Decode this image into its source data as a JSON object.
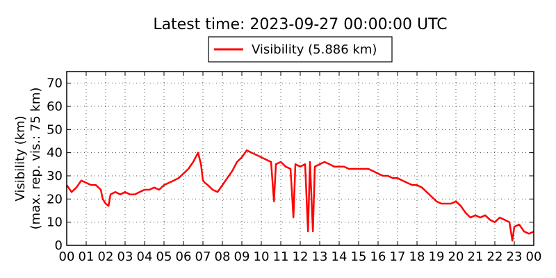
{
  "chart_data": {
    "type": "line",
    "title": "Latest time: 2023-09-27 00:00:00 UTC",
    "xlabel": "",
    "ylabel": "Visibility (km)",
    "ylabel2": "(max. rep. vis.: 75 km)",
    "ylim": [
      0,
      75
    ],
    "xlim": [
      0,
      24
    ],
    "yticks": [
      "0",
      "10",
      "20",
      "30",
      "40",
      "50",
      "60",
      "70"
    ],
    "xticks": [
      "00",
      "01",
      "02",
      "03",
      "04",
      "05",
      "06",
      "07",
      "08",
      "09",
      "10",
      "11",
      "12",
      "13",
      "14",
      "15",
      "16",
      "17",
      "18",
      "19",
      "20",
      "21",
      "22",
      "23",
      "00"
    ],
    "grid": true,
    "legend_position": "top-center",
    "series": [
      {
        "name": "Visibility (5.886 km)",
        "color": "#ff0000",
        "x": [
          0.0,
          0.25,
          0.5,
          0.75,
          1.0,
          1.25,
          1.5,
          1.75,
          1.85,
          2.0,
          2.15,
          2.25,
          2.5,
          2.75,
          3.0,
          3.25,
          3.5,
          3.75,
          4.0,
          4.25,
          4.5,
          4.75,
          5.0,
          5.25,
          5.5,
          5.75,
          6.0,
          6.25,
          6.5,
          6.75,
          6.9,
          7.0,
          7.1,
          7.25,
          7.5,
          7.75,
          8.0,
          8.25,
          8.5,
          8.75,
          9.0,
          9.25,
          9.5,
          9.75,
          10.0,
          10.25,
          10.5,
          10.65,
          10.75,
          11.0,
          11.25,
          11.5,
          11.65,
          11.75,
          12.0,
          12.25,
          12.4,
          12.5,
          12.65,
          12.75,
          13.0,
          13.25,
          13.5,
          13.75,
          14.0,
          14.25,
          14.5,
          14.75,
          15.0,
          15.25,
          15.5,
          15.75,
          16.0,
          16.25,
          16.5,
          16.75,
          17.0,
          17.25,
          17.5,
          17.75,
          18.0,
          18.25,
          18.5,
          18.75,
          19.0,
          19.25,
          19.5,
          19.75,
          20.0,
          20.25,
          20.5,
          20.75,
          21.0,
          21.25,
          21.5,
          21.75,
          22.0,
          22.25,
          22.5,
          22.75,
          22.9,
          23.0,
          23.25,
          23.5,
          23.75,
          24.0
        ],
        "values": [
          26,
          23,
          25,
          28,
          27,
          26,
          26,
          24,
          20,
          18,
          17,
          22,
          23,
          22,
          23,
          22,
          22,
          23,
          24,
          24,
          25,
          24,
          26,
          27,
          28,
          29,
          31,
          33,
          36,
          40,
          35,
          28,
          27,
          26,
          24,
          23,
          26,
          29,
          32,
          36,
          38,
          41,
          40,
          39,
          38,
          37,
          36,
          19,
          35,
          36,
          34,
          33,
          12,
          35,
          34,
          35,
          6,
          36,
          6,
          34,
          35,
          36,
          35,
          34,
          34,
          34,
          33,
          33,
          33,
          33,
          33,
          32,
          31,
          30,
          30,
          29,
          29,
          28,
          27,
          26,
          26,
          25,
          23,
          21,
          19,
          18,
          18,
          18,
          19,
          17,
          14,
          12,
          13,
          12,
          13,
          11,
          10,
          12,
          11,
          10,
          2,
          8,
          9,
          6,
          5,
          5.886
        ]
      }
    ]
  }
}
